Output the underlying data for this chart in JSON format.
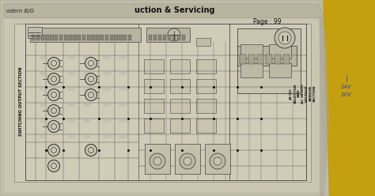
{
  "yellow_bg": "#c4a822",
  "page_color": "#c8c4aa",
  "page_inner": "#d4d0bc",
  "circuit_bg": "#ccc8b4",
  "header_bg": "#b0ac98",
  "text_header": "uction & Servicing",
  "text_title": "odern B/G",
  "text_page": "Page : 99",
  "text_left_label": "SWITCHING OUTPUT SECTION",
  "text_right_label": "AC/DC\nSELECTOR\nAND\nAC IN/OUT\nVOLTAGE\nSENSOR\nSECTION",
  "text_sidenote": "14V\n10V",
  "wire_color": "#2a2a2a",
  "comp_color": "#3a3a3a",
  "bg_fill": "#b8a018"
}
